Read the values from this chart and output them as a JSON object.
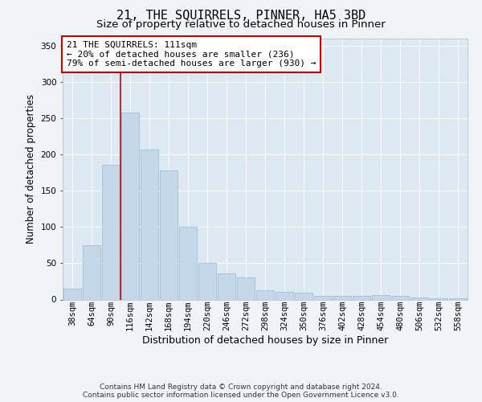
{
  "title": "21, THE SQUIRRELS, PINNER, HA5 3BD",
  "subtitle": "Size of property relative to detached houses in Pinner",
  "xlabel": "Distribution of detached houses by size in Pinner",
  "ylabel": "Number of detached properties",
  "bar_color": "#c5d8ea",
  "bar_edge_color": "#9ab5cc",
  "bg_color": "#dce8f2",
  "grid_color": "#ffffff",
  "fig_bg_color": "#f0f4f8",
  "categories": [
    "38sqm",
    "64sqm",
    "90sqm",
    "116sqm",
    "142sqm",
    "168sqm",
    "194sqm",
    "220sqm",
    "246sqm",
    "272sqm",
    "298sqm",
    "324sqm",
    "350sqm",
    "376sqm",
    "402sqm",
    "428sqm",
    "454sqm",
    "480sqm",
    "506sqm",
    "532sqm",
    "558sqm"
  ],
  "values": [
    15,
    75,
    185,
    257,
    207,
    178,
    100,
    50,
    36,
    31,
    13,
    10,
    9,
    5,
    5,
    5,
    6,
    5,
    3,
    2,
    2
  ],
  "ylim": [
    0,
    360
  ],
  "yticks": [
    0,
    50,
    100,
    150,
    200,
    250,
    300,
    350
  ],
  "annotation_text": "21 THE SQUIRRELS: 111sqm\n← 20% of detached houses are smaller (236)\n79% of semi-detached houses are larger (930) →",
  "ann_box_fc": "#ffffff",
  "ann_box_ec": "#cc0000",
  "line_color": "#cc0000",
  "footer": "Contains HM Land Registry data © Crown copyright and database right 2024.\nContains public sector information licensed under the Open Government Licence v3.0.",
  "title_fs": 11,
  "subtitle_fs": 9.5,
  "ylabel_fs": 8.5,
  "xlabel_fs": 9,
  "tick_fs": 7.5,
  "ann_fs": 8,
  "footer_fs": 6.5
}
